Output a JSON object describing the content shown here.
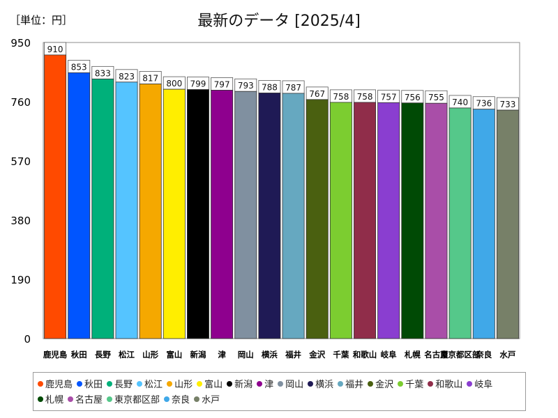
{
  "header": {
    "unit_label": "［単位：円］",
    "title": "最新のデータ [2025/4]"
  },
  "chart_data": {
    "type": "bar",
    "title": "最新のデータ [2025/4]",
    "unit": "［単位：円］",
    "xlabel": "",
    "ylabel": "",
    "ylim": [
      0,
      950
    ],
    "yticks": [
      0,
      190,
      380,
      570,
      760,
      950
    ],
    "grid": false,
    "legend": "bottom",
    "categories": [
      "鹿児島",
      "秋田",
      "長野",
      "松江",
      "山形",
      "富山",
      "新潟",
      "津",
      "岡山",
      "横浜",
      "福井",
      "金沢",
      "千葉",
      "和歌山",
      "岐阜",
      "札幌",
      "名古屋",
      "東京都区部",
      "奈良",
      "水戸"
    ],
    "values": [
      910,
      853,
      833,
      823,
      817,
      800,
      799,
      797,
      793,
      788,
      787,
      767,
      758,
      758,
      757,
      756,
      755,
      740,
      736,
      733
    ],
    "colors": [
      "#ff4a00",
      "#0055ff",
      "#00b07a",
      "#55c4ff",
      "#f5a800",
      "#ffee00",
      "#000000",
      "#8e008e",
      "#8090a0",
      "#1f1a55",
      "#66a8c0",
      "#4a6010",
      "#7ccd30",
      "#902d4a",
      "#8a3ed0",
      "#004a05",
      "#a94ea8",
      "#55c88a",
      "#40a8e8",
      "#778068"
    ]
  }
}
